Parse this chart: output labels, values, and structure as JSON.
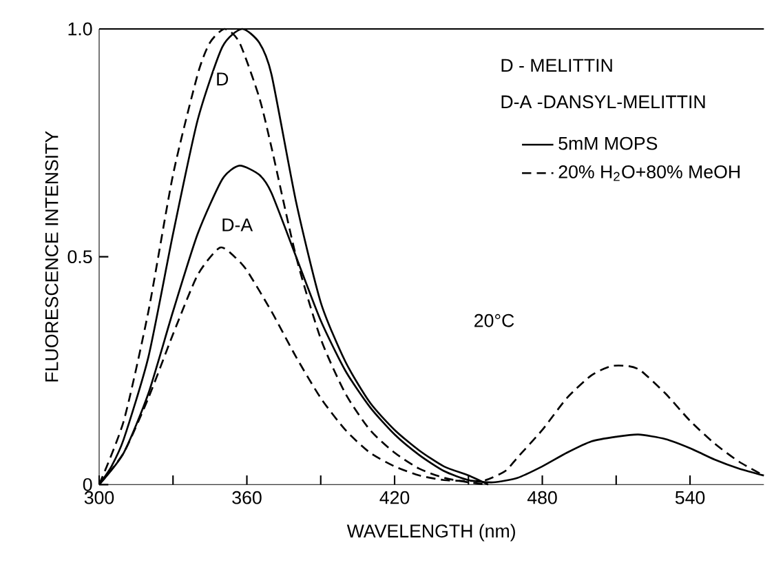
{
  "chart_data": {
    "type": "line",
    "xlabel": "WAVELENGTH (nm)",
    "ylabel": "FLUORESCENCE INTENSITY",
    "xlim": [
      300,
      570
    ],
    "ylim": [
      0,
      1
    ],
    "xticks": [
      300,
      {
        "value": 330,
        "label": null
      },
      360,
      {
        "value": 390,
        "label": null
      },
      420,
      {
        "value": 450,
        "label": null
      },
      480,
      {
        "value": 510,
        "label": null
      },
      540
    ],
    "yticks": [
      0,
      0.5,
      {
        "value": 1,
        "label": "1.0"
      }
    ],
    "legend": "top right",
    "grid": false,
    "marker": "none",
    "series": [
      {
        "name": "5mM MOPS",
        "color": "#000000",
        "line_style": "solid",
        "x": [
          300,
          305,
          310,
          320,
          330,
          340,
          350,
          358,
          365,
          370,
          380,
          390,
          400,
          410,
          420,
          430,
          440,
          450,
          458
        ],
        "values": [
          0,
          0.04,
          0.1,
          0.28,
          0.55,
          0.8,
          0.96,
          1.0,
          0.97,
          0.9,
          0.62,
          0.4,
          0.27,
          0.18,
          0.12,
          0.075,
          0.04,
          0.02,
          0.0
        ]
      },
      {
        "name": "20% H$_{2}$O+80% MeOH",
        "color": "#000000",
        "line_style": "dashed",
        "x": [
          300,
          310,
          320,
          330,
          340,
          345,
          351,
          357,
          365,
          370,
          380,
          390,
          400,
          410,
          420,
          430,
          440,
          450,
          458
        ],
        "values": [
          0,
          0.14,
          0.38,
          0.68,
          0.9,
          0.97,
          1.0,
          0.97,
          0.85,
          0.74,
          0.5,
          0.32,
          0.2,
          0.12,
          0.07,
          0.035,
          0.015,
          0.005,
          0.0
        ]
      },
      {
        "color": "#000000",
        "line_style": "solid",
        "x": [
          300,
          310,
          320,
          330,
          340,
          350,
          357,
          365,
          370,
          380,
          390,
          400,
          410,
          420,
          430,
          440,
          450,
          460,
          470,
          480,
          490,
          500,
          510,
          519,
          530,
          540,
          550,
          560,
          570
        ],
        "values": [
          0,
          0.07,
          0.2,
          0.38,
          0.55,
          0.67,
          0.7,
          0.68,
          0.64,
          0.5,
          0.36,
          0.25,
          0.17,
          0.11,
          0.065,
          0.03,
          0.01,
          0.005,
          0.015,
          0.04,
          0.07,
          0.095,
          0.105,
          0.11,
          0.1,
          0.08,
          0.055,
          0.035,
          0.02
        ]
      },
      {
        "color": "#000000",
        "line_style": "dashed",
        "x": [
          300,
          310,
          320,
          330,
          340,
          349,
          355,
          360,
          370,
          380,
          390,
          400,
          410,
          420,
          430,
          440,
          450,
          457,
          465,
          470,
          480,
          490,
          500,
          508,
          515,
          520,
          530,
          540,
          550,
          560,
          570
        ],
        "values": [
          0,
          0.07,
          0.19,
          0.33,
          0.46,
          0.52,
          0.5,
          0.47,
          0.38,
          0.28,
          0.19,
          0.12,
          0.07,
          0.04,
          0.02,
          0.01,
          0.008,
          0.01,
          0.03,
          0.06,
          0.12,
          0.19,
          0.24,
          0.26,
          0.26,
          0.25,
          0.2,
          0.14,
          0.09,
          0.05,
          0.02
        ]
      }
    ],
    "annotations": [
      {
        "text": "D",
        "x": 350,
        "y": 0.89
      },
      {
        "text": "D-A",
        "x": 356,
        "y": 0.57
      },
      "D - MELITTIN",
      "D-A -DANSYL-MELITTIN",
      "20°C"
    ]
  }
}
